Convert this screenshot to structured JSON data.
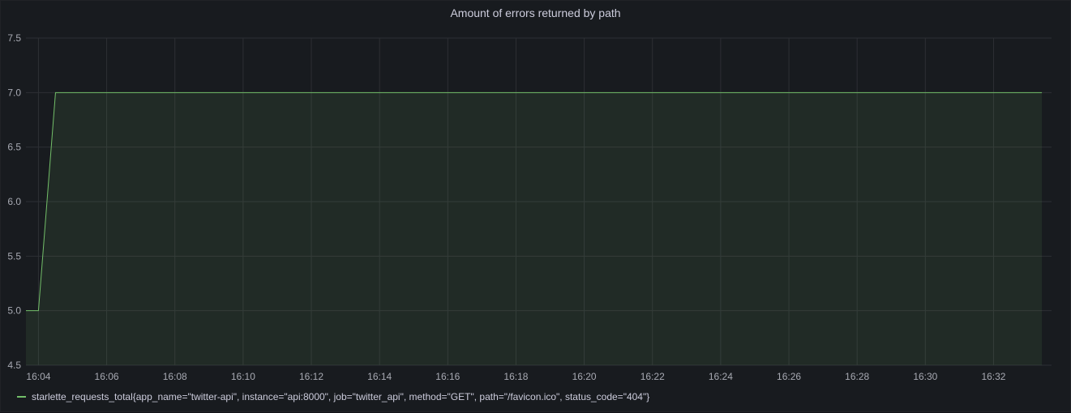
{
  "panel": {
    "title": "Amount of errors returned by path"
  },
  "colors": {
    "background": "#181b1f",
    "grid": "#2d2f34",
    "series": "#73bf69"
  },
  "chart_data": {
    "type": "area",
    "title": "Amount of errors returned by path",
    "xlabel": "",
    "ylabel": "",
    "x_ticks": [
      "16:04",
      "16:06",
      "16:08",
      "16:10",
      "16:12",
      "16:14",
      "16:16",
      "16:18",
      "16:20",
      "16:22",
      "16:24",
      "16:26",
      "16:28",
      "16:30",
      "16:32"
    ],
    "y_ticks": [
      "4.5",
      "5.0",
      "5.5",
      "6.0",
      "6.5",
      "7.0",
      "7.5"
    ],
    "ylim": [
      4.5,
      7.5
    ],
    "xlim": [
      "16:03:38",
      "16:33:42"
    ],
    "grid": true,
    "legend_position": "bottom-left",
    "series": [
      {
        "name": "starlette_requests_total{app_name=\"twitter-api\", instance=\"api:8000\", job=\"twitter_api\", method=\"GET\", path=\"/favicon.ico\", status_code=\"404\"}",
        "x": [
          "16:03:38",
          "16:04:00",
          "16:04:30",
          "16:33:25"
        ],
        "values": [
          5,
          5,
          7,
          7
        ]
      }
    ]
  }
}
